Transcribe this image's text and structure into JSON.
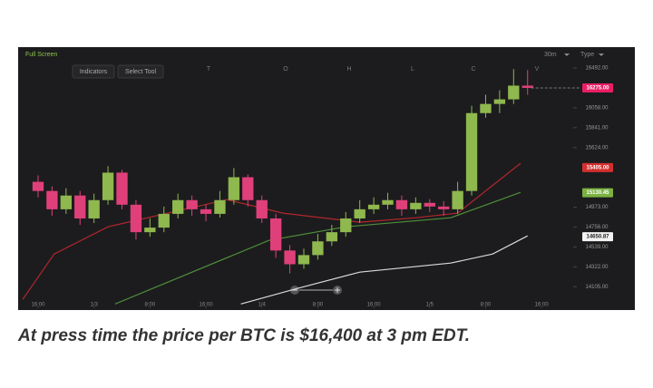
{
  "chart_data": {
    "type": "candlestick",
    "toolbar": {
      "full_screen": "Full Screen",
      "interval": "30m",
      "chart_type": "Type",
      "indicators": "Indicators",
      "select_tool": "Select Tool"
    },
    "ohlc_labels": [
      "T",
      "O",
      "H",
      "L",
      "C",
      "V"
    ],
    "caption": "At press time the price per BTC is $16,400 at 3 pm EDT.",
    "x": [
      0,
      2,
      4,
      6,
      8,
      10,
      12,
      14,
      16,
      18,
      20,
      22,
      24,
      26,
      28,
      30,
      32,
      34,
      36,
      38,
      40,
      42,
      44,
      46,
      48,
      50,
      52,
      54,
      56,
      58,
      60,
      62,
      64,
      66,
      68,
      70
    ],
    "open": [
      15250,
      15150,
      14950,
      15100,
      14850,
      15050,
      15350,
      15000,
      14700,
      14750,
      14900,
      15050,
      14950,
      14900,
      15050,
      15300,
      15050,
      14850,
      14500,
      14350,
      14450,
      14600,
      14700,
      14850,
      14950,
      15000,
      15050,
      14950,
      15020,
      14980,
      14950,
      15150,
      16000,
      16100,
      16150,
      16300
    ],
    "high": [
      15320,
      15200,
      15180,
      15150,
      15120,
      15420,
      15380,
      15050,
      14850,
      14980,
      15120,
      15100,
      15000,
      15150,
      15400,
      15330,
      15100,
      14900,
      14560,
      14520,
      14680,
      14780,
      14920,
      15050,
      15080,
      15130,
      15100,
      15080,
      15060,
      15040,
      15250,
      16080,
      16200,
      16250,
      16480,
      16470
    ],
    "low": [
      15080,
      14880,
      14900,
      14780,
      14800,
      15000,
      14950,
      14620,
      14650,
      14700,
      14850,
      14880,
      14820,
      14860,
      15000,
      14980,
      14800,
      14420,
      14250,
      14300,
      14400,
      14550,
      14650,
      14800,
      14900,
      14950,
      14880,
      14900,
      14920,
      14880,
      14900,
      15100,
      15950,
      16000,
      16100,
      16200
    ],
    "close": [
      15150,
      14950,
      15100,
      14850,
      15050,
      15350,
      15000,
      14700,
      14750,
      14900,
      15050,
      14950,
      14900,
      15050,
      15300,
      15050,
      14850,
      14500,
      14350,
      14450,
      14600,
      14700,
      14850,
      14950,
      15000,
      15050,
      14950,
      15020,
      14980,
      14950,
      15150,
      16000,
      16100,
      16150,
      16300,
      16275
    ],
    "up_color": "#8fb84e",
    "down_color": "#e0407a",
    "lines": [
      {
        "color": "#b3262d",
        "x": [
          -2.2,
          2.3,
          10,
          27,
          35,
          46,
          54,
          60,
          69
        ],
        "values": [
          13966,
          14462,
          14759,
          15056,
          14908,
          14809,
          14858,
          14908,
          15452
        ]
      },
      {
        "color": "#4f8f3a",
        "x": [
          11,
          33,
          44,
          59,
          69
        ],
        "values": [
          13917,
          14610,
          14759,
          14858,
          15135
        ]
      },
      {
        "color": "#d9d9d9",
        "x": [
          29,
          37,
          46,
          59,
          65,
          70
        ],
        "values": [
          13917,
          14085,
          14264,
          14363,
          14462,
          14660
        ]
      }
    ],
    "xlim": [
      -2.85,
      76
    ],
    "ylim": [
      13870,
      16720
    ],
    "xticks": [
      {
        "value": 0,
        "label": "16:00"
      },
      {
        "value": 8,
        "label": "1/3"
      },
      {
        "value": 16,
        "label": "8:00"
      },
      {
        "value": 24,
        "label": "16:00"
      },
      {
        "value": 32,
        "label": "1/4"
      },
      {
        "value": 40,
        "label": "8:00"
      },
      {
        "value": 48,
        "label": "16:00"
      },
      {
        "value": 56,
        "label": "1/5"
      },
      {
        "value": 64,
        "label": "8:00"
      },
      {
        "value": 72,
        "label": "16:00"
      }
    ],
    "yticks": [
      {
        "value": 16492,
        "label": "16492.00"
      },
      {
        "value": 16058,
        "label": "16058.00"
      },
      {
        "value": 15841,
        "label": "15841.00"
      },
      {
        "value": 15624,
        "label": "15624.00"
      },
      {
        "value": 14973,
        "label": "14973.00"
      },
      {
        "value": 14756,
        "label": "14756.00"
      },
      {
        "value": 14539,
        "label": "14539.00"
      },
      {
        "value": 14322,
        "label": "14322.00"
      },
      {
        "value": 14105,
        "label": "14105.00"
      }
    ],
    "price_tags": [
      {
        "value": 16275,
        "label": "16275.00",
        "color": "#e91e63"
      },
      {
        "value": 15405,
        "label": "15405.00",
        "color": "#d32f2f"
      },
      {
        "value": 15130.45,
        "label": "15130.45",
        "color": "#7cb342"
      },
      {
        "value": 14650.87,
        "label": "14650.87",
        "color": "#f2f2f2"
      }
    ]
  }
}
